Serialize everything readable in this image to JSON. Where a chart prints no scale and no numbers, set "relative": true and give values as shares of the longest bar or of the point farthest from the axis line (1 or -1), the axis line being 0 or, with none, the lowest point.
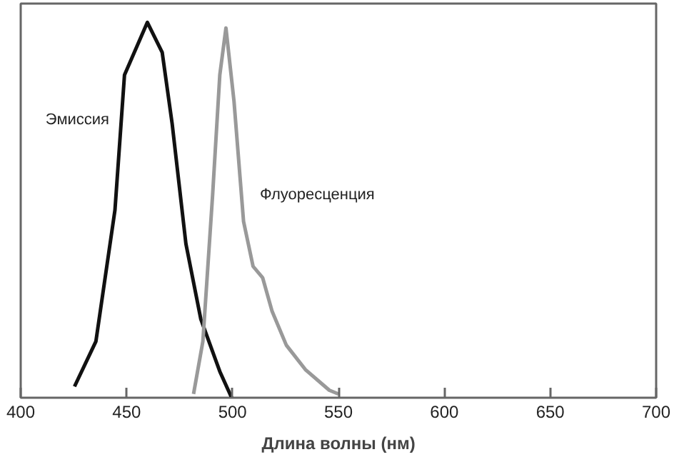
{
  "chart_data": {
    "type": "line",
    "relative": true,
    "xlabel": "Длина волны (нм)",
    "xlim": [
      400,
      700
    ],
    "xticks": [
      400,
      450,
      500,
      550,
      600,
      650,
      700
    ],
    "grid": false,
    "marker": "none",
    "line_style": "solid",
    "series": [
      {
        "name": "Эмиссия",
        "color": "#111111",
        "x": [
          425.4,
          435.5,
          444.5,
          449,
          459.8,
          466.8,
          471.5,
          478,
          485,
          494,
          499.6
        ],
        "values": [
          0.03,
          0.15,
          0.5,
          0.86,
          1.0,
          0.92,
          0.73,
          0.41,
          0.21,
          0.07,
          0.0
        ]
      },
      {
        "name": "Флуоресценция",
        "color": "#999999",
        "x": [
          481.6,
          486,
          490.6,
          494,
          496.9,
          500.7,
          505.2,
          509.7,
          514.2,
          518.7,
          525.4,
          534.4,
          545.7,
          550
        ],
        "values": [
          0.01,
          0.15,
          0.54,
          0.86,
          0.985,
          0.79,
          0.47,
          0.35,
          0.32,
          0.23,
          0.14,
          0.075,
          0.02,
          0.01
        ]
      }
    ]
  }
}
